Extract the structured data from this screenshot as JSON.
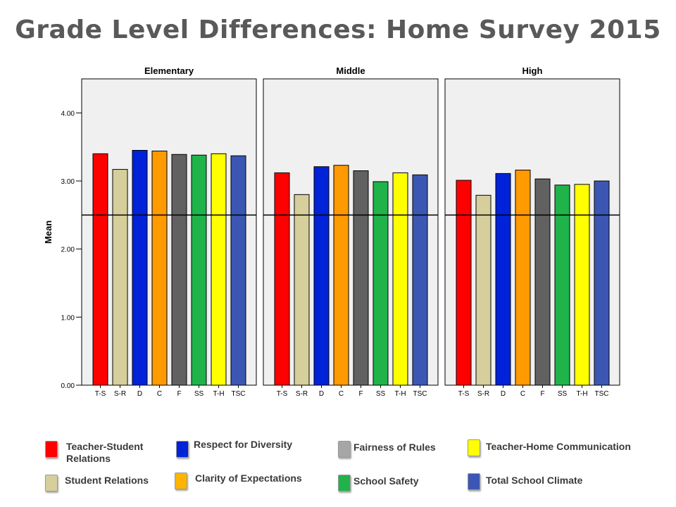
{
  "title": "Grade Level Differences: Home Survey 2015",
  "chart_data": {
    "type": "bar",
    "panels": [
      "Elementary",
      "Middle",
      "High"
    ],
    "categories": [
      "T-S",
      "S-R",
      "D",
      "C",
      "F",
      "SS",
      "T-H",
      "TSC"
    ],
    "series_colors": [
      "#ff0000",
      "#d6cf9b",
      "#0022d8",
      "#ff9a00",
      "#616161",
      "#1fb34a",
      "#ffff00",
      "#3b57b3"
    ],
    "values": {
      "Elementary": [
        3.4,
        3.17,
        3.45,
        3.44,
        3.39,
        3.38,
        3.4,
        3.37
      ],
      "Middle": [
        3.12,
        2.8,
        3.21,
        3.23,
        3.15,
        2.99,
        3.12,
        3.09
      ],
      "High": [
        3.01,
        2.79,
        3.11,
        3.16,
        3.03,
        2.94,
        2.95,
        3.0
      ]
    },
    "ylabel": "Mean",
    "yticks": [
      "0.00",
      "1.00",
      "2.00",
      "3.00",
      "4.00"
    ],
    "ylim": [
      0,
      4.5
    ],
    "reference_line": 2.5,
    "panel_background": "#f0f0f0"
  },
  "legend": [
    {
      "label": "Teacher-Student Relations",
      "color": "#ff0000"
    },
    {
      "label": "Respect for Diversity",
      "color": "#0022d8"
    },
    {
      "label": "Fairness of Rules",
      "color": "#a6a6a6"
    },
    {
      "label": "Teacher-Home Communication",
      "color": "#ffff00"
    },
    {
      "label": "Student Relations",
      "color": "#d6cf9b"
    },
    {
      "label": "Clarity of Expectations",
      "color": "#ffb400"
    },
    {
      "label": "School Safety",
      "color": "#1fb34a"
    },
    {
      "label": "Total School Climate",
      "color": "#3b57b3"
    }
  ]
}
